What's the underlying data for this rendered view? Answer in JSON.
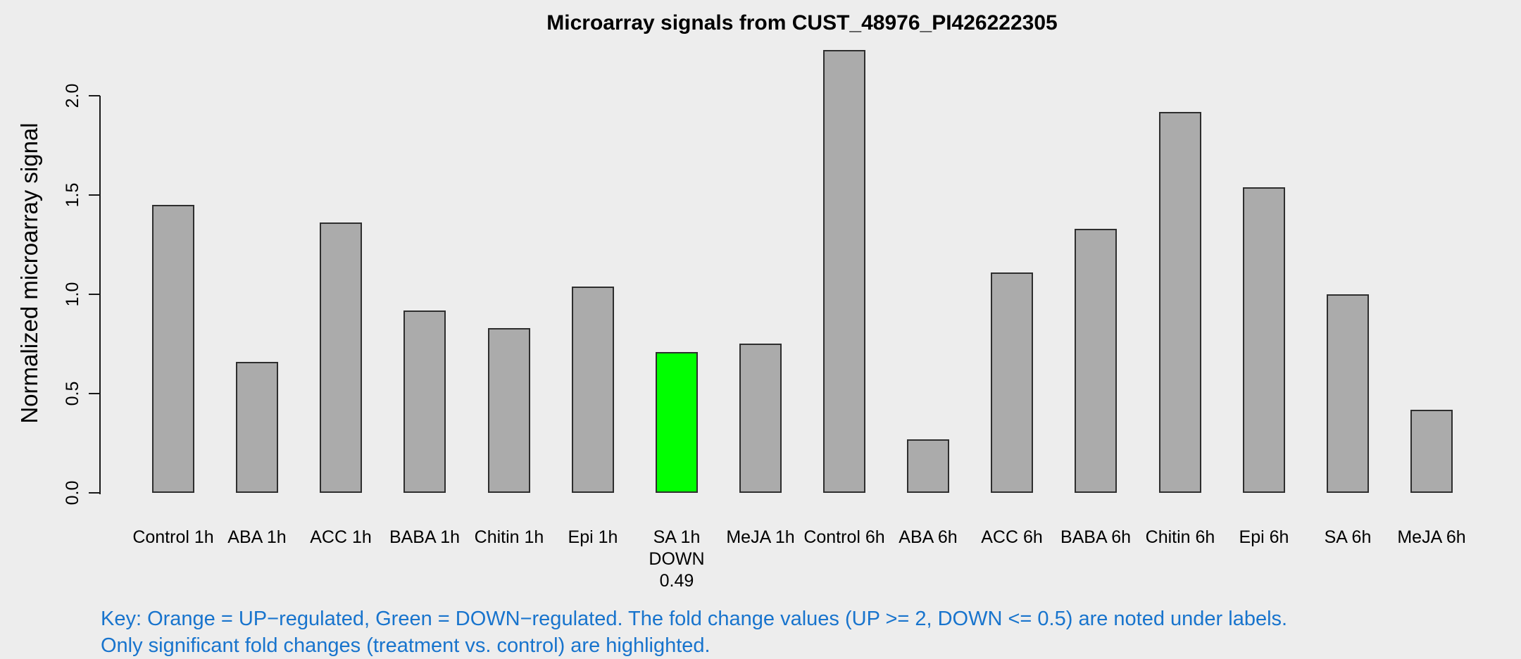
{
  "title": "Microarray signals from CUST_48976_PI426222305",
  "y_axis_label": "Normalized microarray signal",
  "key": {
    "line1": "Key: Orange = UP−regulated, Green = DOWN−regulated. The fold change values (UP >= 2, DOWN <= 0.5) are noted under labels.",
    "line2": "Only significant fold changes (treatment vs. control) are highlighted."
  },
  "colors": {
    "background": "#EDEDED",
    "bar_fill": "#ABABAB",
    "bar_border": "#2E2E2E",
    "down_regulated": "#00FF00",
    "up_regulated": "#FFA500",
    "key_text": "#1874CD",
    "axis": "#1a1a1a",
    "text": "#000000"
  },
  "chart_data": {
    "type": "bar",
    "title": "Microarray signals from CUST_48976_PI426222305",
    "xlabel": "",
    "ylabel": "Normalized microarray signal",
    "ylim": [
      0,
      2.25
    ],
    "yticks": [
      "0.0",
      "0.5",
      "1.0",
      "1.5",
      "2.0"
    ],
    "grid": false,
    "legend_position": "none",
    "categories": [
      "Control 1h",
      "ABA 1h",
      "ACC 1h",
      "BABA 1h",
      "Chitin 1h",
      "Epi 1h",
      "SA 1h",
      "MeJA 1h",
      "Control 6h",
      "ABA 6h",
      "ACC 6h",
      "BABA 6h",
      "Chitin 6h",
      "Epi 6h",
      "SA 6h",
      "MeJA 6h"
    ],
    "values": [
      1.45,
      0.66,
      1.36,
      0.92,
      0.83,
      1.04,
      0.71,
      0.75,
      2.23,
      0.27,
      1.11,
      1.33,
      1.92,
      1.54,
      1.0,
      0.42
    ],
    "default_bar_color": "#ABABAB",
    "highlighted_bars": [
      {
        "index": 6,
        "category": "SA 1h",
        "direction": "DOWN",
        "fold_change": "0.49",
        "color": "#00FF00"
      }
    ]
  }
}
